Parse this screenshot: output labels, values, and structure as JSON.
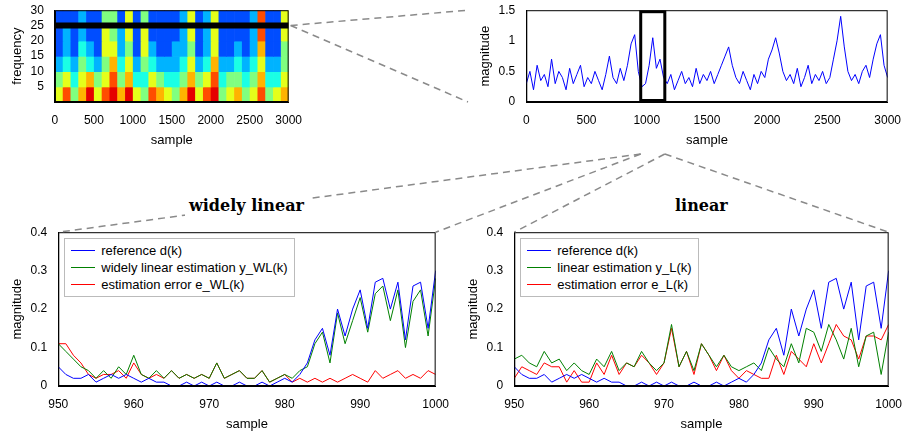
{
  "chart_data": [
    {
      "type": "heatmap",
      "x_label": "sample",
      "y_label": "frequency",
      "x_edges": [
        0,
        100,
        200,
        300,
        400,
        500,
        600,
        700,
        800,
        900,
        1000,
        1100,
        1200,
        1300,
        1400,
        1500,
        1600,
        1700,
        1800,
        1900,
        2000,
        2100,
        2200,
        2300,
        2400,
        2500,
        2600,
        2700,
        2800,
        2900,
        3000
      ],
      "y_edges": [
        0,
        5,
        10,
        15,
        20,
        25,
        30
      ],
      "cells": [
        [
          0.6,
          0.8,
          0.5,
          0.7,
          0.9,
          0.6,
          0.8,
          0.9,
          0.7,
          0.9,
          0.6,
          0.5,
          0.8,
          0.7,
          0.6,
          0.5,
          0.7,
          0.9,
          0.6,
          0.8,
          0.9,
          0.5,
          0.6,
          0.7,
          0.5,
          0.6,
          0.8,
          0.5,
          0.6,
          0.7
        ],
        [
          0.5,
          0.6,
          0.4,
          0.6,
          0.7,
          0.5,
          0.6,
          0.8,
          0.5,
          0.7,
          0.4,
          0.4,
          0.6,
          0.5,
          0.4,
          0.4,
          0.5,
          0.7,
          0.5,
          0.6,
          0.8,
          0.4,
          0.5,
          0.5,
          0.4,
          0.5,
          0.7,
          0.4,
          0.4,
          0.6
        ],
        [
          0.3,
          0.4,
          0.3,
          0.5,
          0.4,
          0.3,
          0.5,
          0.7,
          0.4,
          0.6,
          0.3,
          0.5,
          0.4,
          0.3,
          0.3,
          0.3,
          0.4,
          0.6,
          0.3,
          0.4,
          0.7,
          0.3,
          0.3,
          0.4,
          0.3,
          0.4,
          0.6,
          0.3,
          0.3,
          0.5
        ],
        [
          0.2,
          0.3,
          0.2,
          0.4,
          0.3,
          0.2,
          0.6,
          0.6,
          0.3,
          0.5,
          0.2,
          0.6,
          0.3,
          0.2,
          0.2,
          0.3,
          0.3,
          0.5,
          0.2,
          0.3,
          0.6,
          0.2,
          0.2,
          0.3,
          0.2,
          0.3,
          0.7,
          0.2,
          0.2,
          0.5
        ],
        [
          0.2,
          0.3,
          0.2,
          0.3,
          0.2,
          0.2,
          0.6,
          0.5,
          0.3,
          0.6,
          0.2,
          0.6,
          0.2,
          0.2,
          0.2,
          0.2,
          0.3,
          0.6,
          0.2,
          0.3,
          0.6,
          0.2,
          0.2,
          0.2,
          0.2,
          0.3,
          0.8,
          0.2,
          0.2,
          0.6
        ],
        [
          0.2,
          0.2,
          0.2,
          0.3,
          0.2,
          0.2,
          0.5,
          0.5,
          0.2,
          0.6,
          0.2,
          0.5,
          0.2,
          0.2,
          0.2,
          0.2,
          0.3,
          0.6,
          0.2,
          0.3,
          0.6,
          0.2,
          0.2,
          0.2,
          0.2,
          0.3,
          0.8,
          0.2,
          0.2,
          0.6
        ]
      ],
      "color_range": [
        0,
        1
      ],
      "selected_frequency": 25,
      "xlim": [
        0,
        3000
      ],
      "ylim": [
        0,
        30
      ],
      "xticks": [
        0,
        500,
        1000,
        1500,
        2000,
        2500,
        3000
      ],
      "yticks": [
        5,
        10,
        15,
        20,
        25,
        30
      ],
      "grid": false
    },
    {
      "type": "line",
      "x_label": "sample",
      "y_label": "magnitude",
      "x": [
        0,
        30,
        60,
        90,
        120,
        150,
        180,
        210,
        240,
        270,
        300,
        330,
        360,
        390,
        420,
        450,
        480,
        510,
        540,
        570,
        600,
        630,
        660,
        690,
        720,
        750,
        780,
        810,
        840,
        870,
        900,
        930,
        960,
        990,
        1020,
        1050,
        1080,
        1110,
        1140,
        1170,
        1200,
        1230,
        1260,
        1290,
        1320,
        1350,
        1380,
        1410,
        1440,
        1470,
        1500,
        1530,
        1560,
        1590,
        1620,
        1650,
        1680,
        1710,
        1740,
        1770,
        1800,
        1830,
        1860,
        1890,
        1920,
        1950,
        1980,
        2010,
        2040,
        2070,
        2100,
        2130,
        2160,
        2190,
        2220,
        2250,
        2280,
        2310,
        2340,
        2370,
        2400,
        2430,
        2460,
        2490,
        2520,
        2550,
        2580,
        2610,
        2640,
        2670,
        2700,
        2730,
        2760,
        2790,
        2820,
        2850,
        2880,
        2910,
        2940,
        2970,
        3000
      ],
      "series": [
        {
          "color": "#0000ff",
          "values": [
            0.3,
            0.5,
            0.2,
            0.6,
            0.35,
            0.45,
            0.25,
            0.7,
            0.3,
            0.5,
            0.4,
            0.2,
            0.55,
            0.3,
            0.45,
            0.6,
            0.25,
            0.4,
            0.3,
            0.5,
            0.35,
            0.2,
            0.45,
            0.75,
            0.4,
            0.3,
            0.55,
            0.35,
            0.6,
            0.95,
            1.1,
            0.5,
            0.25,
            0.3,
            0.6,
            1.05,
            0.55,
            0.7,
            0.4,
            0.3,
            0.45,
            0.2,
            0.35,
            0.5,
            0.3,
            0.4,
            0.25,
            0.55,
            0.3,
            0.45,
            0.35,
            0.5,
            0.3,
            0.45,
            0.6,
            0.75,
            0.9,
            0.6,
            0.4,
            0.3,
            0.5,
            0.35,
            0.2,
            0.45,
            0.3,
            0.5,
            0.4,
            0.7,
            0.85,
            1.05,
            0.8,
            0.5,
            0.35,
            0.45,
            0.3,
            0.55,
            0.25,
            0.4,
            0.6,
            0.3,
            0.45,
            0.35,
            0.5,
            0.3,
            0.4,
            0.7,
            1.0,
            1.4,
            0.9,
            0.5,
            0.35,
            0.45,
            0.3,
            0.5,
            0.6,
            0.4,
            0.7,
            0.95,
            1.1,
            0.6,
            0.4
          ]
        }
      ],
      "selected_range": [
        950,
        1150
      ],
      "xlim": [
        0,
        3000
      ],
      "ylim": [
        0,
        1.5
      ],
      "xticks": [
        0,
        500,
        1000,
        1500,
        2000,
        2500,
        3000
      ],
      "yticks": [
        0,
        0.5,
        1,
        1.5
      ],
      "grid": false
    },
    {
      "type": "line",
      "title": "widely linear",
      "x_label": "sample",
      "y_label": "magnitude",
      "x": [
        950,
        951,
        952,
        953,
        954,
        955,
        956,
        957,
        958,
        959,
        960,
        961,
        962,
        963,
        964,
        965,
        966,
        967,
        968,
        969,
        970,
        971,
        972,
        973,
        974,
        975,
        976,
        977,
        978,
        979,
        980,
        981,
        982,
        983,
        984,
        985,
        986,
        987,
        988,
        989,
        990,
        991,
        992,
        993,
        994,
        995,
        996,
        997,
        998,
        999,
        1000
      ],
      "series": [
        {
          "name": "reference d(k)",
          "color": "#0000ff",
          "values": [
            0.05,
            0.03,
            0.02,
            0.02,
            0.03,
            0.01,
            0.02,
            0.03,
            0.02,
            0.03,
            0.02,
            0.01,
            0.02,
            0.01,
            0.01,
            0,
            0,
            0.01,
            0,
            0.01,
            0,
            0.01,
            0,
            0,
            0.01,
            0,
            0,
            0.01,
            0,
            0.01,
            0.02,
            0.01,
            0.03,
            0.06,
            0.12,
            0.15,
            0.08,
            0.2,
            0.13,
            0.2,
            0.25,
            0.15,
            0.27,
            0.28,
            0.2,
            0.27,
            0.12,
            0.26,
            0.27,
            0.15,
            0.3
          ]
        },
        {
          "name": "widely linear estimation y_WL(k)",
          "color": "#008000",
          "values": [
            0.11,
            0.09,
            0.07,
            0.05,
            0.04,
            0.02,
            0.04,
            0.02,
            0.05,
            0.03,
            0.08,
            0.03,
            0.02,
            0.04,
            0.02,
            0.04,
            0.02,
            0.03,
            0.02,
            0.03,
            0.02,
            0.06,
            0.02,
            0.03,
            0.04,
            0.02,
            0.02,
            0.04,
            0.01,
            0.02,
            0.03,
            0.02,
            0.04,
            0.05,
            0.11,
            0.14,
            0.06,
            0.19,
            0.11,
            0.17,
            0.23,
            0.14,
            0.24,
            0.26,
            0.17,
            0.25,
            0.1,
            0.22,
            0.25,
            0.13,
            0.28
          ]
        },
        {
          "name": "estimation error e_WL(k)",
          "color": "#ff0000",
          "values": [
            0.11,
            0.11,
            0.08,
            0.06,
            0.03,
            0.02,
            0.03,
            0.03,
            0.04,
            0.02,
            0.06,
            0.03,
            0.02,
            0.03,
            0.02,
            0.04,
            0.02,
            0.03,
            0.02,
            0.03,
            0.02,
            0.06,
            0.02,
            0.03,
            0.04,
            0.02,
            0.02,
            0.04,
            0.01,
            0.02,
            0.03,
            0.01,
            0.02,
            0.01,
            0.02,
            0.01,
            0.02,
            0.01,
            0.02,
            0.03,
            0.02,
            0.01,
            0.04,
            0.02,
            0.03,
            0.04,
            0.02,
            0.03,
            0.02,
            0.04,
            0.03
          ]
        }
      ],
      "legend": "top-left",
      "xlim": [
        950,
        1000
      ],
      "ylim": [
        0,
        0.4
      ],
      "xticks": [
        950,
        960,
        970,
        980,
        990,
        1000
      ],
      "yticks": [
        0,
        0.1,
        0.2,
        0.3,
        0.4
      ],
      "grid": false
    },
    {
      "type": "line",
      "title": "linear",
      "x_label": "sample",
      "y_label": "magnitude",
      "x": [
        950,
        951,
        952,
        953,
        954,
        955,
        956,
        957,
        958,
        959,
        960,
        961,
        962,
        963,
        964,
        965,
        966,
        967,
        968,
        969,
        970,
        971,
        972,
        973,
        974,
        975,
        976,
        977,
        978,
        979,
        980,
        981,
        982,
        983,
        984,
        985,
        986,
        987,
        988,
        989,
        990,
        991,
        992,
        993,
        994,
        995,
        996,
        997,
        998,
        999,
        1000
      ],
      "series": [
        {
          "name": "reference d(k)",
          "color": "#0000ff",
          "values": [
            0.05,
            0.03,
            0.02,
            0.02,
            0.03,
            0.01,
            0.02,
            0.03,
            0.02,
            0.03,
            0.02,
            0.01,
            0.02,
            0.01,
            0.01,
            0,
            0,
            0.01,
            0,
            0.01,
            0,
            0.01,
            0,
            0,
            0.01,
            0,
            0,
            0.01,
            0,
            0.01,
            0.02,
            0.01,
            0.03,
            0.06,
            0.12,
            0.15,
            0.08,
            0.2,
            0.13,
            0.2,
            0.25,
            0.15,
            0.27,
            0.28,
            0.2,
            0.27,
            0.12,
            0.26,
            0.27,
            0.15,
            0.3
          ]
        },
        {
          "name": "linear estimation y_L(k)",
          "color": "#008000",
          "values": [
            0.07,
            0.08,
            0.06,
            0.05,
            0.09,
            0.06,
            0.07,
            0.04,
            0.06,
            0.04,
            0.03,
            0.07,
            0.05,
            0.09,
            0.04,
            0.06,
            0.05,
            0.09,
            0.06,
            0.04,
            0.06,
            0.16,
            0.05,
            0.09,
            0.04,
            0.11,
            0.08,
            0.05,
            0.08,
            0.05,
            0.04,
            0.05,
            0.06,
            0.04,
            0.1,
            0.07,
            0.05,
            0.11,
            0.06,
            0.15,
            0.14,
            0.09,
            0.16,
            0.12,
            0.07,
            0.15,
            0.05,
            0.13,
            0.14,
            0.03,
            0.14
          ]
        },
        {
          "name": "estimation error e_L(k)",
          "color": "#ff0000",
          "values": [
            0.02,
            0.05,
            0.04,
            0.03,
            0.06,
            0.05,
            0.05,
            0.01,
            0.04,
            0.01,
            0.01,
            0.06,
            0.03,
            0.08,
            0.03,
            0.06,
            0.05,
            0.08,
            0.06,
            0.03,
            0.06,
            0.15,
            0.05,
            0.09,
            0.03,
            0.11,
            0.08,
            0.04,
            0.08,
            0.04,
            0.02,
            0.04,
            0.03,
            0.02,
            0.02,
            0.08,
            0.03,
            0.09,
            0.07,
            0.05,
            0.11,
            0.06,
            0.11,
            0.16,
            0.13,
            0.12,
            0.07,
            0.13,
            0.13,
            0.12,
            0.16
          ]
        }
      ],
      "legend": "top-left",
      "xlim": [
        950,
        1000
      ],
      "ylim": [
        0,
        0.4
      ],
      "xticks": [
        950,
        960,
        970,
        980,
        990,
        1000
      ],
      "yticks": [
        0,
        0.1,
        0.2,
        0.3,
        0.4
      ],
      "grid": false
    }
  ]
}
